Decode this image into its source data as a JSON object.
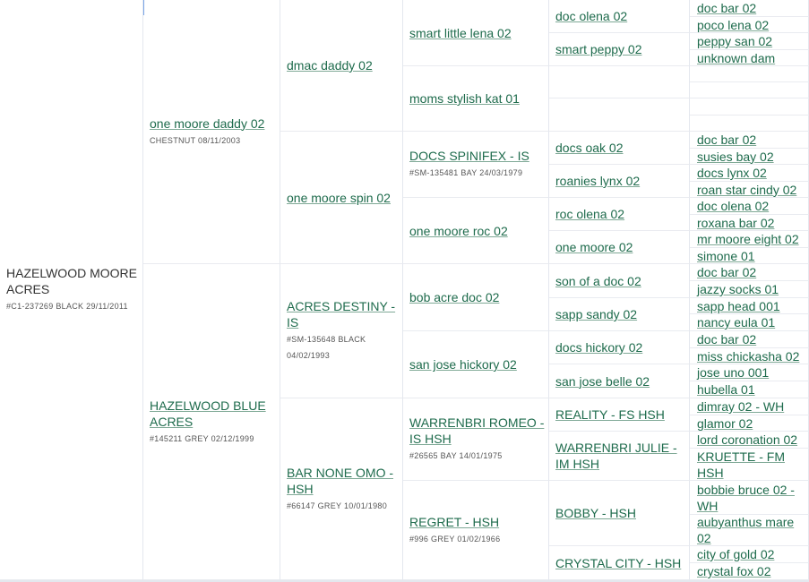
{
  "colors": {
    "link": "#1e6b4c",
    "info": "#555555",
    "border": "#e4e7ee"
  },
  "pedigree": {
    "columns": [
      [
        {
          "name": "HAZELWOOD MOORE ACRES",
          "info": "#C1-237269 BLACK 29/11/2011",
          "link": false
        }
      ],
      [
        {
          "name": "one moore daddy 02",
          "info": "CHESTNUT 08/11/2003"
        },
        {
          "name": "HAZELWOOD BLUE ACRES",
          "info": "#145211 GREY 02/12/1999"
        }
      ],
      [
        {
          "name": "dmac daddy 02"
        },
        {
          "name": "one moore spin 02"
        },
        {
          "name": "ACRES DESTINY - IS",
          "info": "#SM-135648 BLACK 04/02/1993"
        },
        {
          "name": "BAR NONE OMO - HSH",
          "info": "#66147 GREY 10/01/1980"
        }
      ],
      [
        {
          "name": "smart little lena 02"
        },
        {
          "name": "moms stylish kat 01"
        },
        {
          "name": "DOCS SPINIFEX - IS",
          "info": "#SM-135481 BAY 24/03/1979"
        },
        {
          "name": "one moore roc 02"
        },
        {
          "name": "bob acre doc 02"
        },
        {
          "name": "san jose hickory 02"
        },
        {
          "name": "WARRENBRI ROMEO - IS HSH",
          "info": "#26565 BAY 14/01/1975"
        },
        {
          "name": "REGRET - HSH",
          "info": "#996 GREY 01/02/1966"
        }
      ],
      [
        {
          "name": "doc olena 02"
        },
        {
          "name": "smart peppy 02"
        },
        {
          "name": ""
        },
        {
          "name": ""
        },
        {
          "name": "docs oak 02"
        },
        {
          "name": "roanies lynx 02"
        },
        {
          "name": "roc olena 02"
        },
        {
          "name": "one moore 02"
        },
        {
          "name": "son of a doc 02"
        },
        {
          "name": "sapp sandy 02"
        },
        {
          "name": "docs hickory 02"
        },
        {
          "name": "san jose belle 02"
        },
        {
          "name": "REALITY - FS HSH"
        },
        {
          "name": "WARRENBRI JULIE - IM HSH"
        },
        {
          "name": "BOBBY - HSH"
        },
        {
          "name": "CRYSTAL CITY - HSH"
        }
      ],
      [
        {
          "name": "doc bar 02"
        },
        {
          "name": "poco lena 02"
        },
        {
          "name": "peppy san 02"
        },
        {
          "name": "unknown dam"
        },
        {
          "name": ""
        },
        {
          "name": ""
        },
        {
          "name": ""
        },
        {
          "name": ""
        },
        {
          "name": "doc bar 02"
        },
        {
          "name": "susies bay 02"
        },
        {
          "name": "docs lynx 02"
        },
        {
          "name": "roan star cindy 02"
        },
        {
          "name": "doc olena 02"
        },
        {
          "name": "roxana bar 02"
        },
        {
          "name": "mr moore eight 02"
        },
        {
          "name": "simone 01"
        },
        {
          "name": "doc bar 02"
        },
        {
          "name": "jazzy socks 01"
        },
        {
          "name": "sapp head 001"
        },
        {
          "name": "nancy eula 01"
        },
        {
          "name": "doc bar 02"
        },
        {
          "name": "miss chickasha 02"
        },
        {
          "name": "jose uno 001"
        },
        {
          "name": "hubella 01"
        },
        {
          "name": "dimray 02 - WH"
        },
        {
          "name": "glamor 02"
        },
        {
          "name": "lord coronation 02"
        },
        {
          "name": "KRUETTE - FM HSH"
        },
        {
          "name": "bobbie bruce 02 - WH"
        },
        {
          "name": "aubyanthus mare 02"
        },
        {
          "name": "city of gold 02"
        },
        {
          "name": "crystal fox 02"
        }
      ]
    ]
  }
}
